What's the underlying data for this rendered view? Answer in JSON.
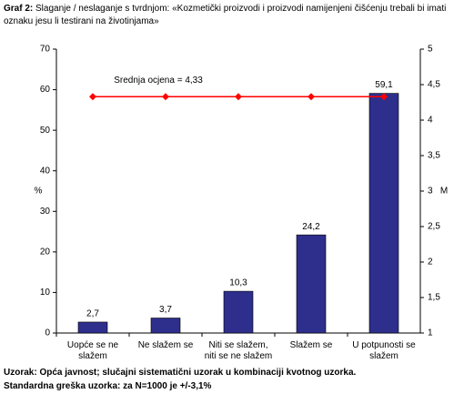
{
  "chart_data": {
    "type": "bar",
    "title_label": "Graf 2:",
    "title": "Slaganje / neslaganje s tvrdnjom: «Kozmetički proizvodi i proizvodi namijenjeni čišćenju trebali bi imati oznaku jesu li testirani na životinjama»",
    "categories": [
      "Uopće se ne slažem",
      "Ne slažem se",
      "Niti se slažem, niti se ne slažem",
      "Slažem se",
      "U potpunosti se slažem"
    ],
    "series": [
      {
        "color": "#2e2e8c",
        "values": [
          2.7,
          3.7,
          10.3,
          24.2,
          59.1
        ],
        "value_labels": [
          "2,7",
          "3,7",
          "10,3",
          "24,2",
          "59,1"
        ]
      },
      {
        "name": "Srednja ocjena = 4,33",
        "color": "#ff0000",
        "axis": "y2",
        "values": [
          4.33,
          4.33,
          4.33,
          4.33,
          4.33
        ]
      }
    ],
    "ylabel": "%",
    "ylim": [
      0,
      70
    ],
    "yticks": [
      0,
      10,
      20,
      30,
      40,
      50,
      60,
      70
    ],
    "y2label": "M",
    "y2lim": [
      1,
      5
    ],
    "y2ticks": [
      1,
      {
        "value": 1.5,
        "label": "1,5"
      },
      2,
      {
        "value": 2.5,
        "label": "2,5"
      },
      3,
      {
        "value": 3.5,
        "label": "3,5"
      },
      4,
      {
        "value": 4.5,
        "label": "4,5"
      },
      5
    ],
    "footnotes": [
      "Uzorak: Opća javnost; slučajni sistematični uzorak u kombinaciji kvotnog uzorka.",
      "Standardna greška uzorka: za N=1000 je +/-3,1%"
    ]
  }
}
